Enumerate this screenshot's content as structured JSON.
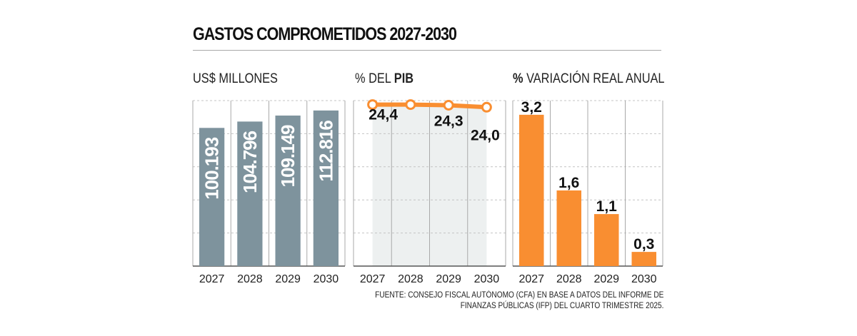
{
  "title": "GASTOS COMPROMETIDOS 2027-2030",
  "panels": {
    "usd": {
      "label": "US$ MILLONES"
    },
    "pib": {
      "label_prefix": "% DEL ",
      "label_bold": "PIB"
    },
    "var": {
      "label_bold": "%",
      "label_rest": " VARIACIÓN REAL ANUAL"
    }
  },
  "source_line1": "FUENTE: CONSEJO FISCAL AUTÓNOMO (CFA) EN BASE A DATOS DEL INFORME DE",
  "source_line2": "FINANZAS PÚBLICAS (IFP) DEL CUARTO TRIMESTRE 2025.",
  "colors": {
    "gray_bar": "#7e939d",
    "orange": "#f98e31",
    "area": "#edf0f0",
    "grid": "#bbbbbb"
  },
  "chart_data": [
    {
      "type": "bar",
      "title": "US$ MILLONES",
      "categories": [
        "2027",
        "2028",
        "2029",
        "2030"
      ],
      "values": [
        100193,
        104796,
        109149,
        112816
      ],
      "labels": [
        "100.193",
        "104.796",
        "109.149",
        "112.816"
      ],
      "ylim": [
        0,
        120000
      ],
      "grid": true
    },
    {
      "type": "line",
      "title": "% DEL PIB",
      "categories": [
        "2027",
        "2028",
        "2029",
        "2030"
      ],
      "values": [
        24.4,
        24.4,
        24.3,
        24.0
      ],
      "labels": [
        "24,4",
        "",
        "24,3",
        "24,0"
      ],
      "ylim": [
        0,
        25
      ],
      "grid": true
    },
    {
      "type": "bar",
      "title": "% VARIACIÓN REAL ANUAL",
      "categories": [
        "2027",
        "2028",
        "2029",
        "2030"
      ],
      "values": [
        3.2,
        1.6,
        1.1,
        0.3
      ],
      "labels": [
        "3,2",
        "1,6",
        "1,1",
        "0,3"
      ],
      "ylim": [
        0,
        3.5
      ],
      "grid": true
    }
  ]
}
